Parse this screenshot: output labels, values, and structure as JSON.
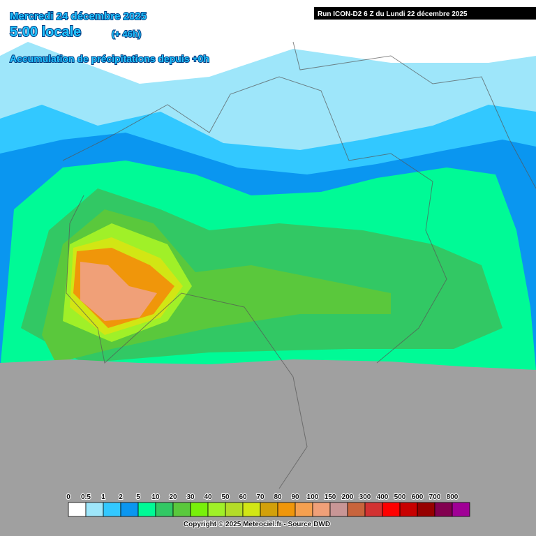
{
  "header": {
    "date": "Mercredi 24 décembre 2025",
    "time": "5:00 locale",
    "lead": "(+ 46h)",
    "product": "Accumulation de précipitations depuis +0h",
    "run": "Run ICON-D2 6 Z du Lundi 22 décembre 2025"
  },
  "legend": [
    {
      "label": "0",
      "color": "#ffffff"
    },
    {
      "label": "0.5",
      "color": "#9ee6fa"
    },
    {
      "label": "1",
      "color": "#32c8ff"
    },
    {
      "label": "2",
      "color": "#0a96f0"
    },
    {
      "label": "5",
      "color": "#00fa96"
    },
    {
      "label": "10",
      "color": "#32c864"
    },
    {
      "label": "20",
      "color": "#5ac83c"
    },
    {
      "label": "30",
      "color": "#78f00a"
    },
    {
      "label": "40",
      "color": "#a0f028"
    },
    {
      "label": "50",
      "color": "#b4dc28"
    },
    {
      "label": "60",
      "color": "#d2e614"
    },
    {
      "label": "70",
      "color": "#d2a00a"
    },
    {
      "label": "80",
      "color": "#f0960a"
    },
    {
      "label": "90",
      "color": "#f5a050"
    },
    {
      "label": "100",
      "color": "#f0a078"
    },
    {
      "label": "150",
      "color": "#c89696"
    },
    {
      "label": "200",
      "color": "#c8643c"
    },
    {
      "label": "300",
      "color": "#d23232"
    },
    {
      "label": "400",
      "color": "#ff0000"
    },
    {
      "label": "500",
      "color": "#c80000"
    },
    {
      "label": "600",
      "color": "#960000"
    },
    {
      "label": "700",
      "color": "#820050"
    },
    {
      "label": "800",
      "color": "#a00096"
    }
  ],
  "footer": {
    "copyright": "Copyright © 2025 Meteociel.fr - Source DWD"
  }
}
